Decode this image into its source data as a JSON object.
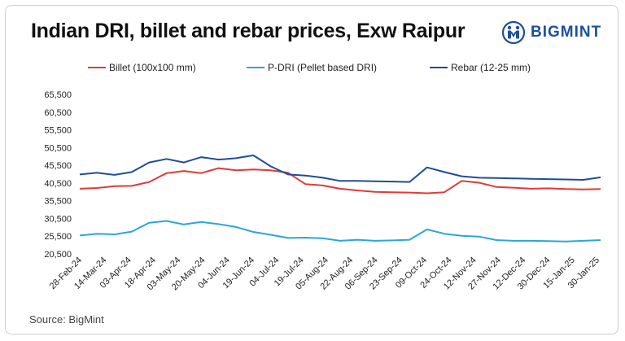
{
  "chart_data": {
    "type": "line",
    "title": "Indian DRI, billet and rebar prices, Exw Raipur",
    "source": "Source: BigMint",
    "logo_text": "BIGMINT",
    "yticks": [
      "65,500",
      "60,500",
      "55,500",
      "50,500",
      "45,500",
      "40,500",
      "35,500",
      "30,500",
      "25,500",
      "20,500"
    ],
    "ylim": [
      20500,
      65500
    ],
    "xticks": [
      "28-Feb-24",
      "14-Mar-24",
      "03-Apr-24",
      "18-Apr-24",
      "03-May-24",
      "20-May-24",
      "04-Jun-24",
      "19-Jun-24",
      "04-Jul-24",
      "19-Jul-24",
      "05-Aug-24",
      "22-Aug-24",
      "06-Sep-24",
      "23-Sep-24",
      "09-Oct-24",
      "24-Oct-24",
      "12-Nov-24",
      "27-Nov-24",
      "12-Dec-24",
      "30-Dec-24",
      "15-Jan-25",
      "30-Jan-25"
    ],
    "series": [
      {
        "name": "Billet (100x100 mm)",
        "color": "#e03a3a",
        "values": [
          38900,
          39100,
          39600,
          39700,
          40800,
          43300,
          43900,
          43300,
          44700,
          44100,
          44300,
          44100,
          43400,
          40200,
          39800,
          38900,
          38400,
          38000,
          37900,
          37800,
          37600,
          37900,
          41100,
          40600,
          39400,
          39200,
          38900,
          39000,
          38800,
          38700,
          38800
        ]
      },
      {
        "name": "P-DRI (Pellet based DRI)",
        "color": "#2aa7d8",
        "values": [
          25700,
          26200,
          26000,
          26800,
          29300,
          29800,
          28800,
          29500,
          28900,
          28100,
          26700,
          25900,
          25000,
          25100,
          24900,
          24200,
          24500,
          24200,
          24300,
          24500,
          27400,
          26200,
          25600,
          25400,
          24400,
          24200,
          24200,
          24100,
          24000,
          24200,
          24400
        ]
      },
      {
        "name": "Rebar (12-25 mm)",
        "color": "#1f4e95",
        "values": [
          42900,
          43400,
          42800,
          43600,
          46300,
          47300,
          46300,
          47800,
          47100,
          47500,
          48300,
          45200,
          42900,
          42600,
          42000,
          41100,
          41100,
          41000,
          40900,
          40800,
          44900,
          43600,
          42400,
          42000,
          41900,
          41800,
          41700,
          41600,
          41500,
          41400,
          42100
        ]
      }
    ]
  }
}
